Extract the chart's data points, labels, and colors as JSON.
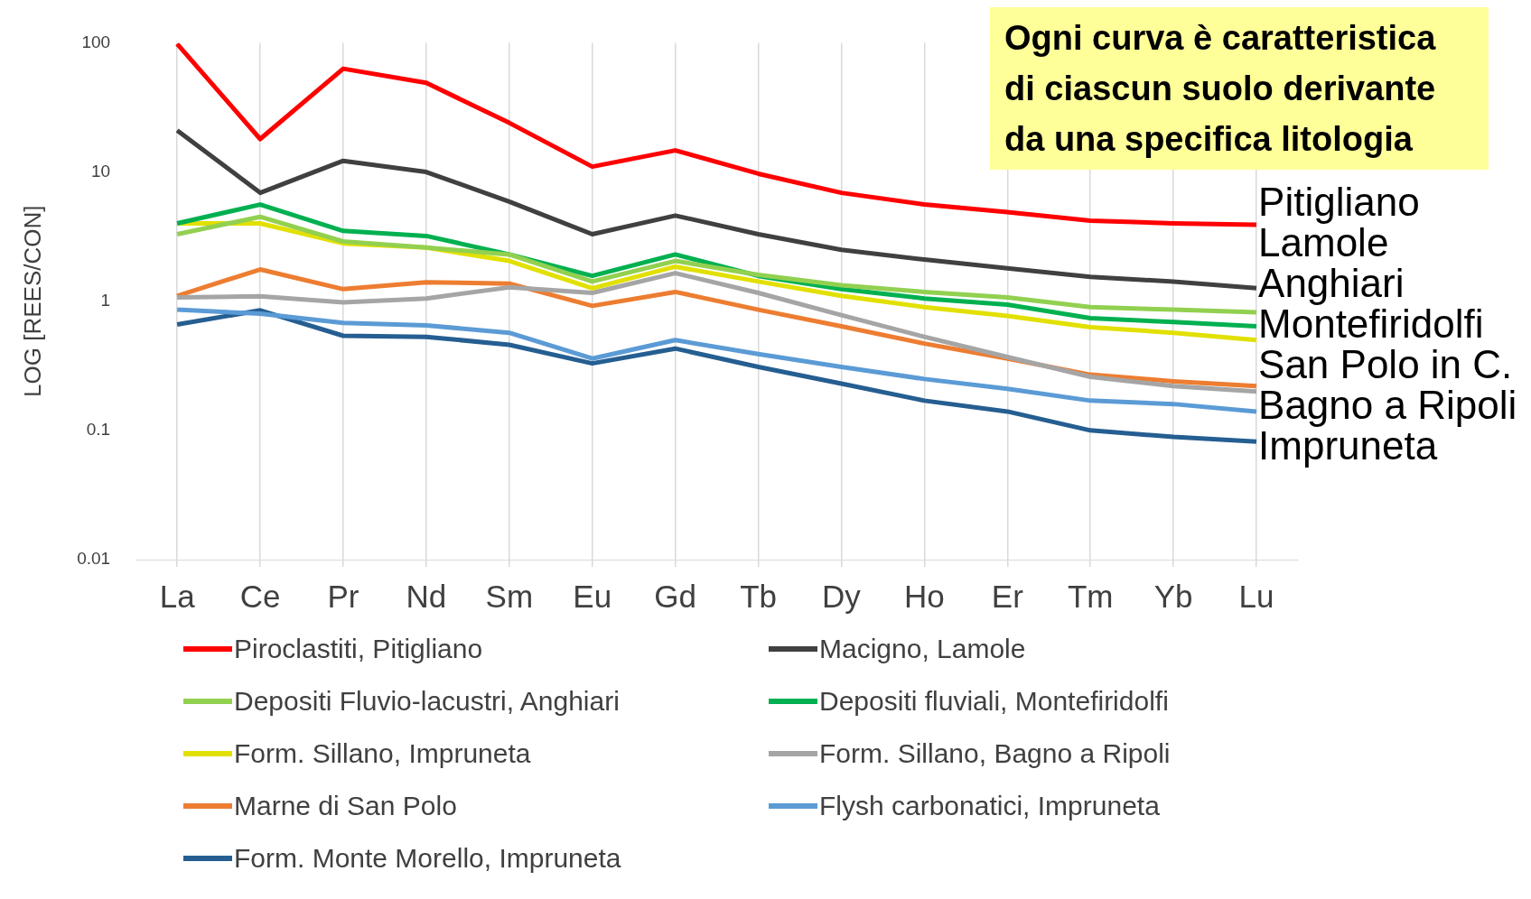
{
  "chart_data": {
    "type": "line",
    "ylabel": "LOG [REES/CON]",
    "categories": [
      "La",
      "Ce",
      "Pr",
      "Nd",
      "Sm",
      "Eu",
      "Gd",
      "Tb",
      "Dy",
      "Ho",
      "Er",
      "Tm",
      "Yb",
      "Lu"
    ],
    "log": "y",
    "ylim": [
      0.01,
      100
    ],
    "yticks": [
      0.01,
      0.1,
      1,
      10,
      100
    ],
    "grid": "x",
    "legend": "bottom",
    "marker": "none",
    "line_style": "solid",
    "series": [
      {
        "name": "Piroclastiti, Pitigliano",
        "color": "#ff0000",
        "values": [
          98,
          18,
          63,
          49,
          24,
          11,
          14.7,
          9.7,
          6.9,
          5.6,
          4.9,
          4.2,
          4.0,
          3.9
        ]
      },
      {
        "name": "Macigno, Lamole",
        "color": "#404040",
        "values": [
          21,
          6.9,
          12.2,
          10,
          5.9,
          3.3,
          4.6,
          3.3,
          2.5,
          2.1,
          1.8,
          1.54,
          1.42,
          1.26
        ]
      },
      {
        "name": "Depositi Fluvio-lacustri, Anghiari",
        "color": "#92d050",
        "values": [
          3.3,
          4.5,
          2.9,
          2.6,
          2.3,
          1.42,
          2.05,
          1.6,
          1.33,
          1.18,
          1.07,
          0.9,
          0.86,
          0.82
        ]
      },
      {
        "name": "Depositi fluviali, Montefiridolfi",
        "color": "#00b050",
        "values": [
          4.0,
          5.6,
          3.5,
          3.2,
          2.3,
          1.57,
          2.3,
          1.57,
          1.24,
          1.05,
          0.94,
          0.74,
          0.69,
          0.64
        ]
      },
      {
        "name": "Form. Sillano, Impruneta",
        "color": "#e2e000",
        "values": [
          4.0,
          4.0,
          2.8,
          2.6,
          2.05,
          1.26,
          1.85,
          1.42,
          1.1,
          0.9,
          0.77,
          0.63,
          0.57,
          0.5
        ]
      },
      {
        "name": "Form. Sillano, Bagno a Ripoli",
        "color": "#a5a5a5",
        "values": [
          1.07,
          1.09,
          0.98,
          1.05,
          1.28,
          1.16,
          1.65,
          1.16,
          0.78,
          0.53,
          0.37,
          0.26,
          0.22,
          0.2
        ]
      },
      {
        "name": "Marne di San Polo",
        "color": "#ed7d31",
        "values": [
          1.1,
          1.76,
          1.24,
          1.4,
          1.37,
          0.92,
          1.18,
          0.86,
          0.64,
          0.47,
          0.36,
          0.27,
          0.24,
          0.22
        ]
      },
      {
        "name": "Flysh carbonatici, Impruneta",
        "color": "#5b9bd5",
        "values": [
          0.86,
          0.8,
          0.68,
          0.65,
          0.57,
          0.36,
          0.5,
          0.39,
          0.31,
          0.25,
          0.21,
          0.17,
          0.16,
          0.14
        ]
      },
      {
        "name": "Form. Monte Morello, Impruneta",
        "color": "#255e91",
        "values": [
          0.66,
          0.85,
          0.54,
          0.53,
          0.46,
          0.33,
          0.43,
          0.31,
          0.23,
          0.17,
          0.14,
          0.1,
          0.089,
          0.082
        ]
      }
    ],
    "annotations": [
      "Ogni curva è caratteristica di ciascun suolo derivante da una specifica litologia",
      "Pitigliano",
      "Lamole",
      "Anghiari",
      "Montefiridolfi",
      "San Polo in C.",
      "Bagno a Ripoli",
      "Impruneta"
    ]
  }
}
